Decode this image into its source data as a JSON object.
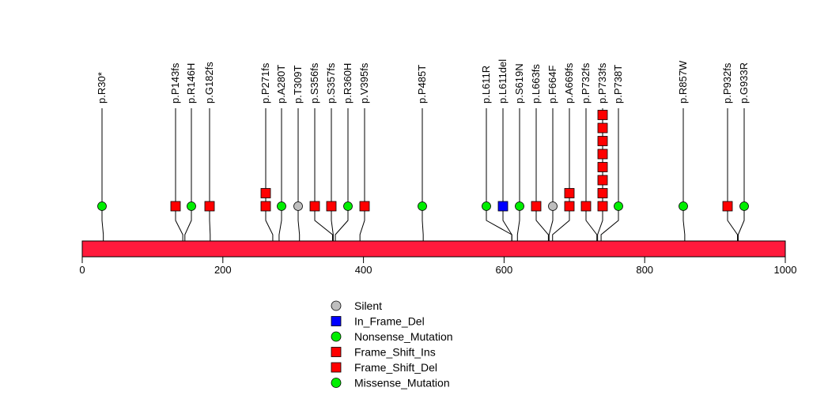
{
  "chart_data": {
    "type": "lollipop",
    "axis": {
      "min": 0,
      "max": 1000,
      "ticks": [
        0,
        200,
        400,
        600,
        800,
        1000
      ]
    },
    "colors": {
      "protein_bar": "#FF1A3C",
      "Silent": "#BEBEBE",
      "In_Frame_Del": "#0000FF",
      "Nonsense_Mutation": "#00EE00",
      "Frame_Shift_Ins": "#FF0000",
      "Frame_Shift_Del": "#FF0000",
      "Missense_Mutation": "#00EE00"
    },
    "legend": [
      {
        "label": "Silent",
        "type": "Silent",
        "shape": "circle"
      },
      {
        "label": "In_Frame_Del",
        "type": "In_Frame_Del",
        "shape": "square"
      },
      {
        "label": "Nonsense_Mutation",
        "type": "Nonsense_Mutation",
        "shape": "circle"
      },
      {
        "label": "Frame_Shift_Ins",
        "type": "Frame_Shift_Ins",
        "shape": "square"
      },
      {
        "label": "Frame_Shift_Del",
        "type": "Frame_Shift_Del",
        "shape": "square"
      },
      {
        "label": "Missense_Mutation",
        "type": "Missense_Mutation",
        "shape": "circle"
      }
    ],
    "mutations": [
      {
        "label": "p.R30*",
        "position": 30,
        "type": "Nonsense_Mutation",
        "count": 1
      },
      {
        "label": "p.P143fs",
        "position": 143,
        "type": "Frame_Shift_Del",
        "count": 1
      },
      {
        "label": "p.R146H",
        "position": 146,
        "type": "Missense_Mutation",
        "count": 1
      },
      {
        "label": "p.G182fs",
        "position": 182,
        "type": "Frame_Shift_Del",
        "count": 1
      },
      {
        "label": "p.P271fs",
        "position": 271,
        "type": "Frame_Shift_Del",
        "count": 2
      },
      {
        "label": "p.A280T",
        "position": 280,
        "type": "Missense_Mutation",
        "count": 1
      },
      {
        "label": "p.T309T",
        "position": 309,
        "type": "Silent",
        "count": 1
      },
      {
        "label": "p.S356fs",
        "position": 356,
        "type": "Frame_Shift_Del",
        "count": 1
      },
      {
        "label": "p.S357fs",
        "position": 357,
        "type": "Frame_Shift_Del",
        "count": 1
      },
      {
        "label": "p.R360H",
        "position": 360,
        "type": "Missense_Mutation",
        "count": 1
      },
      {
        "label": "p.V395fs",
        "position": 395,
        "type": "Frame_Shift_Del",
        "count": 1
      },
      {
        "label": "p.P485T",
        "position": 485,
        "type": "Missense_Mutation",
        "count": 1
      },
      {
        "label": "p.L611R",
        "position": 611,
        "type": "Missense_Mutation",
        "count": 1
      },
      {
        "label": "p.L611del",
        "position": 611,
        "type": "In_Frame_Del",
        "count": 1
      },
      {
        "label": "p.S619N",
        "position": 619,
        "type": "Missense_Mutation",
        "count": 1
      },
      {
        "label": "p.L663fs",
        "position": 663,
        "type": "Frame_Shift_Del",
        "count": 1
      },
      {
        "label": "p.F664F",
        "position": 664,
        "type": "Silent",
        "count": 1
      },
      {
        "label": "p.A669fs",
        "position": 669,
        "type": "Frame_Shift_Del",
        "count": 2
      },
      {
        "label": "p.P732fs",
        "position": 732,
        "type": "Frame_Shift_Del",
        "count": 1
      },
      {
        "label": "p.P733fs",
        "position": 733,
        "type": "Frame_Shift_Del",
        "count": 8
      },
      {
        "label": "p.P738T",
        "position": 738,
        "type": "Missense_Mutation",
        "count": 1
      },
      {
        "label": "p.R857W",
        "position": 857,
        "type": "Missense_Mutation",
        "count": 1
      },
      {
        "label": "p.P932fs",
        "position": 932,
        "type": "Frame_Shift_Del",
        "count": 1
      },
      {
        "label": "p.G933R",
        "position": 933,
        "type": "Missense_Mutation",
        "count": 1
      }
    ]
  }
}
